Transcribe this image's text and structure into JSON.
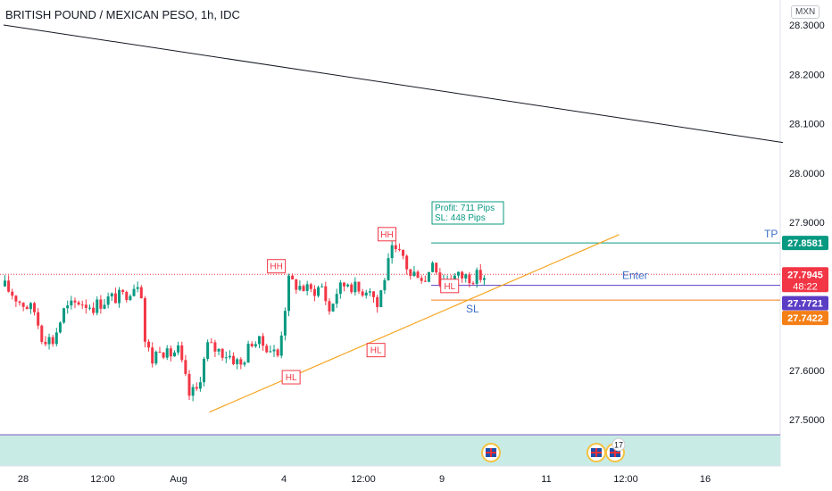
{
  "header": {
    "title": "BRITISH POUND / MEXICAN PESO, 1h, IDC",
    "currency": "MXN"
  },
  "chart_data": {
    "type": "candlestick",
    "symbol": "GBPMXN",
    "timeframe": "1h",
    "ylim": [
      27.42,
      28.32
    ],
    "y_ticks": [
      "28.3000",
      "28.2000",
      "28.1000",
      "28.0000",
      "27.9000",
      "27.6000",
      "27.5000"
    ],
    "x_ticks": [
      "28",
      "12:00",
      "Aug",
      "4",
      "12:00",
      "9",
      "11",
      "12:00",
      "16"
    ],
    "price_labels": [
      {
        "value": "27.8581",
        "color": "#089981",
        "role": "tp"
      },
      {
        "value": "27.7945",
        "color": "#f23645",
        "role": "last"
      },
      {
        "value": "48:22",
        "color": "#f23645",
        "role": "countdown"
      },
      {
        "value": "27.7721",
        "color": "#5b3cc4",
        "role": "entry"
      },
      {
        "value": "27.7422",
        "color": "#f57f17",
        "role": "sl"
      }
    ],
    "levels": {
      "tp": 27.8581,
      "entry": 27.7721,
      "sl": 27.7422,
      "last": 27.7945
    },
    "downtrend_line": {
      "from": {
        "bar": 0,
        "price": 28.3
      },
      "to": {
        "bar": 192,
        "price": 28.06
      }
    },
    "uptrend_line": {
      "from": {
        "bar": 50,
        "price": 27.515
      },
      "to": {
        "bar": 150,
        "price": 27.875
      }
    },
    "annotations": [
      {
        "text": "HH",
        "bar": 74,
        "price": 27.81
      },
      {
        "text": "HL",
        "bar": 78,
        "price": 27.585
      },
      {
        "text": "HH",
        "bar": 104,
        "price": 27.875
      },
      {
        "text": "HL",
        "bar": 101,
        "price": 27.64
      },
      {
        "text": "HL",
        "bar": 121,
        "price": 27.77
      }
    ],
    "trade_labels": {
      "tp": "TP",
      "enter": "Enter",
      "sl": "SL",
      "profit": "Profit: 711  Pips",
      "sl_pips": "SL: 448 Pips"
    },
    "events": [
      {
        "bar": 120,
        "count": ""
      },
      {
        "bar": 146,
        "count": ""
      },
      {
        "bar": 150,
        "count": "17"
      }
    ],
    "anchors": [
      {
        "bar": 0,
        "price": 27.77
      },
      {
        "bar": 4,
        "price": 27.74
      },
      {
        "bar": 8,
        "price": 27.72
      },
      {
        "bar": 10,
        "price": 27.67
      },
      {
        "bar": 13,
        "price": 27.66
      },
      {
        "bar": 16,
        "price": 27.72
      },
      {
        "bar": 20,
        "price": 27.74
      },
      {
        "bar": 24,
        "price": 27.73
      },
      {
        "bar": 28,
        "price": 27.745
      },
      {
        "bar": 32,
        "price": 27.75
      },
      {
        "bar": 36,
        "price": 27.78
      },
      {
        "bar": 37,
        "price": 27.76
      },
      {
        "bar": 38,
        "price": 27.66
      },
      {
        "bar": 40,
        "price": 27.62
      },
      {
        "bar": 42,
        "price": 27.65
      },
      {
        "bar": 44,
        "price": 27.63
      },
      {
        "bar": 47,
        "price": 27.64
      },
      {
        "bar": 50,
        "price": 27.55
      },
      {
        "bar": 52,
        "price": 27.56
      },
      {
        "bar": 55,
        "price": 27.65
      },
      {
        "bar": 58,
        "price": 27.64
      },
      {
        "bar": 61,
        "price": 27.63
      },
      {
        "bar": 64,
        "price": 27.61
      },
      {
        "bar": 67,
        "price": 27.66
      },
      {
        "bar": 71,
        "price": 27.65
      },
      {
        "bar": 74,
        "price": 27.63
      },
      {
        "bar": 77,
        "price": 27.78
      },
      {
        "bar": 80,
        "price": 27.77
      },
      {
        "bar": 83,
        "price": 27.76
      },
      {
        "bar": 86,
        "price": 27.77
      },
      {
        "bar": 88,
        "price": 27.72
      },
      {
        "bar": 90,
        "price": 27.76
      },
      {
        "bar": 93,
        "price": 27.78
      },
      {
        "bar": 96,
        "price": 27.76
      },
      {
        "bar": 99,
        "price": 27.77
      },
      {
        "bar": 101,
        "price": 27.73
      },
      {
        "bar": 103,
        "price": 27.79
      },
      {
        "bar": 105,
        "price": 27.84
      },
      {
        "bar": 108,
        "price": 27.83
      },
      {
        "bar": 110,
        "price": 27.79
      },
      {
        "bar": 112,
        "price": 27.8
      },
      {
        "bar": 114,
        "price": 27.78
      },
      {
        "bar": 116,
        "price": 27.83
      },
      {
        "bar": 118,
        "price": 27.78
      },
      {
        "bar": 120,
        "price": 27.79
      }
    ]
  }
}
